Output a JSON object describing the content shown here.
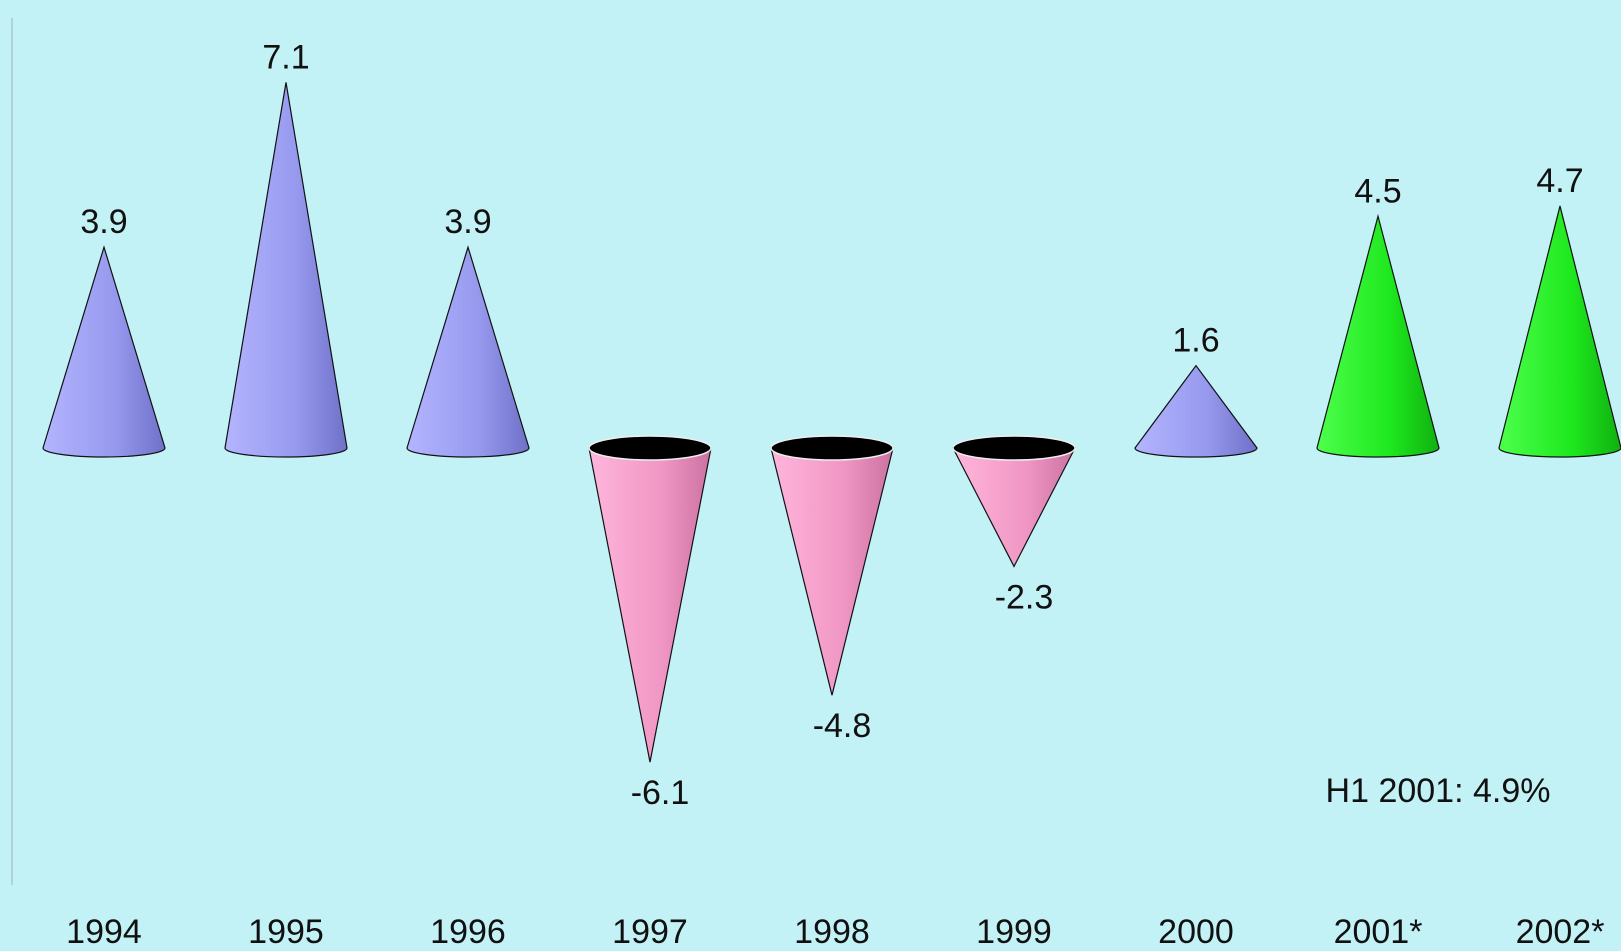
{
  "chart_data": {
    "type": "bar",
    "mark_shape": "cone",
    "categories": [
      "1994",
      "1995",
      "1996",
      "1997",
      "1998",
      "1999",
      "2000",
      "2001*",
      "2002*"
    ],
    "values": [
      3.9,
      7.1,
      3.9,
      -6.1,
      -4.8,
      -2.3,
      1.6,
      4.5,
      4.7
    ],
    "value_labels": [
      "3.9",
      "7.1",
      "3.9",
      "-6.1",
      "-4.8",
      "-2.3",
      "1.6",
      "4.5",
      "4.7"
    ],
    "forecast": [
      false,
      false,
      false,
      false,
      false,
      false,
      false,
      true,
      true
    ],
    "annotation": "H1 2001: 4.9%",
    "title": "",
    "xlabel": "",
    "ylabel": "",
    "grid": false,
    "legend": "none",
    "colors": {
      "positive": "#9a9cf0",
      "negative": "#f39ac8",
      "forecast": "#1ee81e",
      "opening": "#000000",
      "background": "#c2f1f6"
    }
  }
}
